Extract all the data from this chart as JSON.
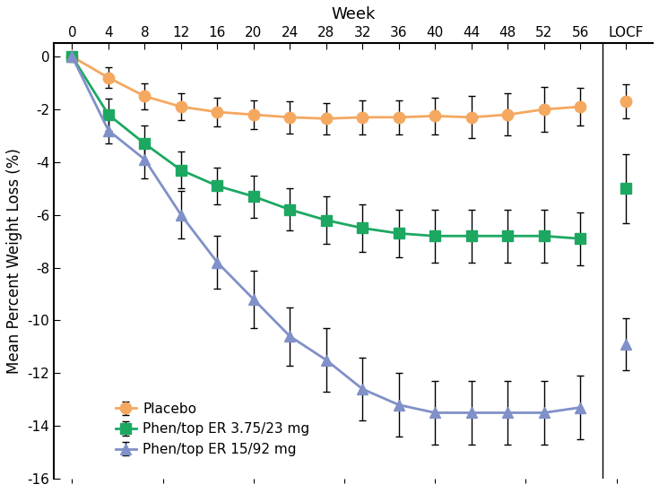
{
  "top_xlabel": "Week",
  "ylabel": "Mean Percent Weight Loss (%)",
  "ylim": [
    -16,
    0.5
  ],
  "yticks": [
    0,
    -2,
    -4,
    -6,
    -8,
    -10,
    -12,
    -14,
    -16
  ],
  "weeks": [
    0,
    4,
    8,
    12,
    16,
    20,
    24,
    28,
    32,
    36,
    40,
    44,
    48,
    52,
    56
  ],
  "locf_x": 61,
  "placebo_y": [
    0,
    -0.8,
    -1.5,
    -1.9,
    -2.1,
    -2.2,
    -2.3,
    -2.35,
    -2.3,
    -2.3,
    -2.25,
    -2.3,
    -2.2,
    -2.0,
    -1.9
  ],
  "placebo_err": [
    0,
    0.4,
    0.5,
    0.5,
    0.55,
    0.55,
    0.6,
    0.6,
    0.65,
    0.65,
    0.7,
    0.8,
    0.8,
    0.85,
    0.7
  ],
  "placebo_locf_y": -1.7,
  "placebo_locf_err": 0.65,
  "phen375_y": [
    0,
    -2.2,
    -3.3,
    -4.3,
    -4.9,
    -5.3,
    -5.8,
    -6.2,
    -6.5,
    -6.7,
    -6.8,
    -6.8,
    -6.8,
    -6.8,
    -6.9
  ],
  "phen375_err": [
    0,
    0.6,
    0.7,
    0.7,
    0.7,
    0.8,
    0.8,
    0.9,
    0.9,
    0.9,
    1.0,
    1.0,
    1.0,
    1.0,
    1.0
  ],
  "phen375_locf_y": -5.0,
  "phen375_locf_err": 1.3,
  "phen1592_y": [
    0,
    -2.8,
    -3.9,
    -6.0,
    -7.8,
    -9.2,
    -10.6,
    -11.5,
    -12.6,
    -13.2,
    -13.5,
    -13.5,
    -13.5,
    -13.5,
    -13.3
  ],
  "phen1592_err": [
    0,
    0.5,
    0.7,
    0.9,
    1.0,
    1.1,
    1.1,
    1.2,
    1.2,
    1.2,
    1.2,
    1.2,
    1.2,
    1.2,
    1.2
  ],
  "phen1592_locf_y": -10.9,
  "phen1592_locf_err": 1.0,
  "placebo_color": "#F5A860",
  "phen375_color": "#1DA862",
  "phen1592_color": "#8090C8",
  "legend_labels": [
    "Placebo",
    "Phen/top ER 3.75/23 mg",
    "Phen/top ER 15/92 mg"
  ],
  "top_xticks": [
    0,
    4,
    8,
    12,
    16,
    20,
    24,
    28,
    32,
    36,
    40,
    44,
    48,
    52,
    56
  ],
  "bg_color": "#FFFFFF",
  "xlim_left": -2,
  "xlim_right": 64
}
